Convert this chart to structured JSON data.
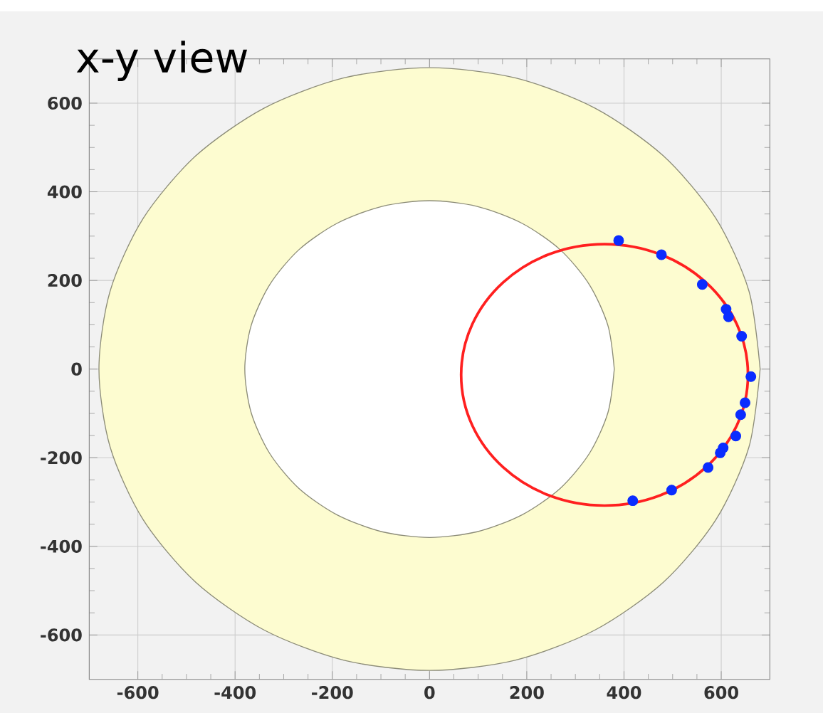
{
  "chart_data": {
    "type": "scatter",
    "title": "x-y view",
    "xlim": [
      -700,
      700
    ],
    "xticks": [
      -600,
      -400,
      -200,
      0,
      200,
      400,
      600
    ],
    "ylim": [
      -700,
      700
    ],
    "yticks": [
      -600,
      -400,
      -200,
      0,
      200,
      400,
      600
    ],
    "grid": true,
    "series": [
      {
        "type": "area",
        "color": "#fdfcd0",
        "marker": "none",
        "x": [
          680,
          657,
          589,
          481,
          340,
          176,
          0,
          -176,
          -340,
          -481,
          -589,
          -657,
          -680,
          -657,
          -589,
          -481,
          -340,
          -176,
          0,
          176,
          340,
          481,
          589,
          657,
          680
        ],
        "values": [
          0,
          176,
          340,
          481,
          589,
          657,
          680,
          657,
          589,
          481,
          340,
          176,
          0,
          -176,
          -340,
          -481,
          -589,
          -657,
          -680,
          -657,
          -589,
          -481,
          -340,
          -176,
          0
        ]
      },
      {
        "type": "area",
        "color": "#ffffff",
        "marker": "none",
        "x": [
          380,
          367,
          329,
          269,
          190,
          98,
          0,
          -98,
          -190,
          -269,
          -329,
          -367,
          -380,
          -367,
          -329,
          -269,
          -190,
          -98,
          0,
          98,
          190,
          269,
          329,
          367,
          380
        ],
        "values": [
          0,
          98,
          190,
          269,
          329,
          367,
          380,
          367,
          329,
          269,
          190,
          98,
          0,
          -98,
          -190,
          -269,
          -329,
          -367,
          -380,
          -367,
          -329,
          -269,
          -190,
          -98,
          0
        ]
      },
      {
        "color": "#0a2cff",
        "marker": "circle",
        "x": [
          389,
          477,
          561,
          610,
          615,
          642,
          661,
          649,
          640,
          630,
          604,
          598,
          573,
          498,
          418
        ],
        "values": [
          290,
          258,
          191,
          135,
          118,
          74,
          -17,
          -76,
          -103,
          -151,
          -178,
          -189,
          -222,
          -273,
          -297
        ]
      }
    ]
  }
}
